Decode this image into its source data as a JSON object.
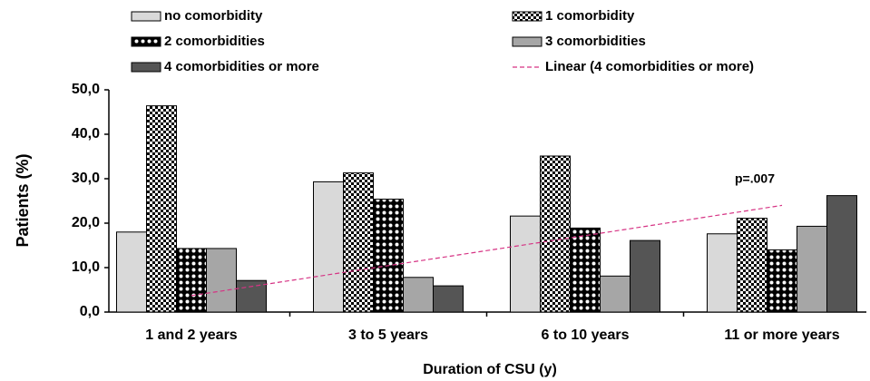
{
  "chart_data": {
    "type": "bar",
    "categories": [
      "1 and 2 years",
      "3 to 5 years",
      "6 to 10 years",
      "11 or more years"
    ],
    "series": [
      {
        "name": "no comorbidity",
        "color": "#d9d9d9",
        "pattern": "solid",
        "values": [
          18.0,
          29.3,
          21.6,
          17.6
        ]
      },
      {
        "name": "1 comorbidity",
        "color": "#000000",
        "pattern": "checker",
        "values": [
          46.4,
          31.3,
          35.1,
          21.1
        ]
      },
      {
        "name": "2 comorbidities",
        "color": "#000000",
        "pattern": "dots",
        "values": [
          14.3,
          25.4,
          18.9,
          14.0
        ]
      },
      {
        "name": "3 comorbidities",
        "color": "#a6a6a6",
        "pattern": "solid",
        "values": [
          14.3,
          7.8,
          8.1,
          19.3
        ]
      },
      {
        "name": "4 comorbidities or more",
        "color": "#555555",
        "pattern": "solid",
        "values": [
          7.1,
          5.9,
          16.1,
          26.2
        ]
      }
    ],
    "trendline": {
      "name": "Linear (4 comorbidities or more)",
      "color": "#d63384",
      "values": [
        3.7,
        10.45,
        17.2,
        24.0
      ]
    },
    "annotation": "p=.007",
    "xlabel": "Duration of CSU (y)",
    "ylabel": "Patients (%)",
    "ylim": [
      0,
      50
    ],
    "yticks": [
      {
        "value": 0,
        "label": "0,0"
      },
      {
        "value": 10,
        "label": "10,0"
      },
      {
        "value": 20,
        "label": "20,0"
      },
      {
        "value": 30,
        "label": "30,0"
      },
      {
        "value": 40,
        "label": "40,0"
      },
      {
        "value": 50,
        "label": "50,0"
      }
    ]
  }
}
